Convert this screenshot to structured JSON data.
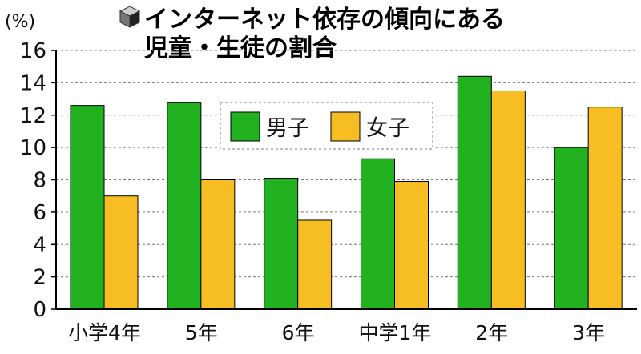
{
  "chart_data": {
    "type": "bar",
    "title_line1": "インターネット依存の傾向にある",
    "title_line2": "児童・生徒の割合",
    "unit": "(%)",
    "categories": [
      "小学4年",
      "5年",
      "6年",
      "中学1年",
      "2年",
      "3年"
    ],
    "series": [
      {
        "name": "男子",
        "color": "#22b21f",
        "values": [
          12.6,
          12.8,
          8.1,
          9.3,
          14.4,
          10.0
        ]
      },
      {
        "name": "女子",
        "color": "#f6be22",
        "values": [
          7.0,
          8.0,
          5.5,
          7.9,
          13.5,
          12.5
        ]
      }
    ],
    "ylim": [
      0,
      16
    ],
    "yticks": [
      "0",
      "2",
      "4",
      "6",
      "8",
      "10",
      "12",
      "14",
      "16"
    ],
    "grid": true,
    "legend": "top-center",
    "title_icon": "cube-icon"
  }
}
